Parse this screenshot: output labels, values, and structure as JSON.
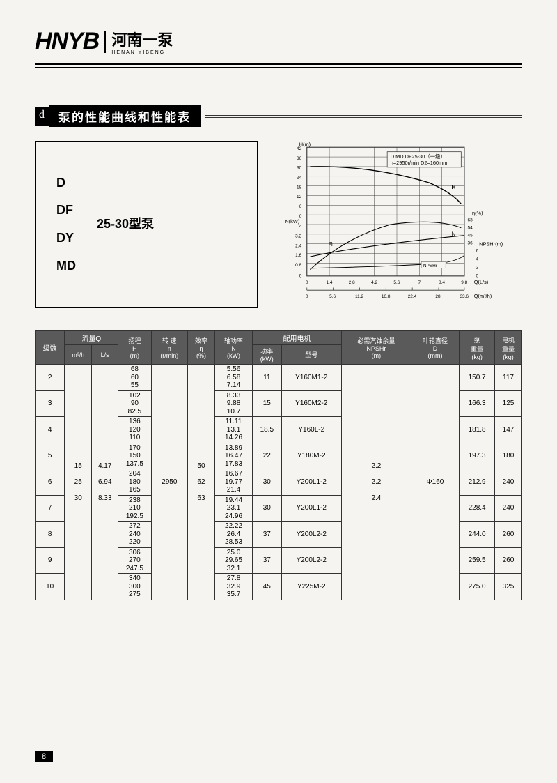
{
  "header": {
    "logo": "HNYB",
    "company_cn": "河南一泵",
    "company_en": "HENAN YIBENG"
  },
  "section_title": "泵的性能曲线和性能表",
  "pump_model": {
    "variants": [
      "D",
      "DF",
      "DY",
      "MD"
    ],
    "model_number": "25-30型泵"
  },
  "chart": {
    "title_line1": "D.MD.DF25-30（一级）",
    "title_line2": "n=2950r/min  D2=160mm",
    "y_label_H": "H(m)",
    "y_ticks_H": [
      "42",
      "36",
      "30",
      "24",
      "18",
      "12",
      "6",
      "0"
    ],
    "y_label_N": "N(kW)",
    "y_ticks_N": [
      "4",
      "3.2",
      "2.4",
      "1.6",
      "0.8",
      "0"
    ],
    "x_label_Ls": "Q(L/s)",
    "x_ticks_Ls": [
      "0",
      "1.4",
      "2.8",
      "4.2",
      "5.6",
      "7",
      "8.4",
      "9.8"
    ],
    "x_label_m3h": "Q(m³/h)",
    "x_ticks_m3h": [
      "0",
      "5.6",
      "11.2",
      "16.8",
      "22.4",
      "28",
      "33.6"
    ],
    "right_eta_label": "η(%)",
    "right_eta_ticks": [
      "63",
      "54",
      "45",
      "36"
    ],
    "right_npshr_label": "NPSHr(m)",
    "right_npshr_ticks": [
      "6",
      "4",
      "2",
      "0"
    ],
    "curve_labels": {
      "H": "H",
      "N": "N",
      "eta": "η",
      "NPSHr": "NPSHr"
    },
    "grid_color": "#333",
    "background": "#f5f4f0"
  },
  "table": {
    "headers": {
      "stage": "级数",
      "flow": "流量Q",
      "flow_m3h": "m³/h",
      "flow_ls": "L/s",
      "head": "扬程",
      "head_sub": "H",
      "head_unit": "(m)",
      "speed": "转 速",
      "speed_sub": "n",
      "speed_unit": "(r/min)",
      "eff": "效率",
      "eff_sub": "η",
      "eff_unit": "(%)",
      "shaft": "轴功率",
      "shaft_sub": "N",
      "shaft_unit": "(kW)",
      "motor": "配用电机",
      "motor_pow": "功率",
      "motor_pow_unit": "(kW)",
      "motor_model": "型号",
      "npshr": "必需汽蚀余量",
      "npshr_sub": "NPSHr",
      "npshr_unit": "(m)",
      "impeller": "叶轮直径",
      "impeller_sub": "D",
      "impeller_unit": "(mm)",
      "pump_wt": "泵",
      "pump_wt2": "重量",
      "pump_wt_unit": "(kg)",
      "motor_wt": "电机",
      "motor_wt2": "重量",
      "motor_wt_unit": "(kg)"
    },
    "flow_m3h_vals": [
      "15",
      "25",
      "30"
    ],
    "flow_ls_vals": [
      "4.17",
      "6.94",
      "8.33"
    ],
    "speed_val": "2950",
    "eff_vals": [
      "50",
      "62",
      "63"
    ],
    "npshr_vals": [
      "2.2",
      "2.2",
      "2.4"
    ],
    "impeller_val": "Φ160",
    "rows": [
      {
        "stage": "2",
        "H": [
          "68",
          "60",
          "55"
        ],
        "N": [
          "5.56",
          "6.58",
          "7.14"
        ],
        "mp": "11",
        "mm": "Y160M1-2",
        "pw": "150.7",
        "mw": "117"
      },
      {
        "stage": "3",
        "H": [
          "102",
          "90",
          "82.5"
        ],
        "N": [
          "8.33",
          "9.88",
          "10.7"
        ],
        "mp": "15",
        "mm": "Y160M2-2",
        "pw": "166.3",
        "mw": "125"
      },
      {
        "stage": "4",
        "H": [
          "136",
          "120",
          "110"
        ],
        "N": [
          "11.11",
          "13.1",
          "14.26"
        ],
        "mp": "18.5",
        "mm": "Y160L-2",
        "pw": "181.8",
        "mw": "147"
      },
      {
        "stage": "5",
        "H": [
          "170",
          "150",
          "137.5"
        ],
        "N": [
          "13.89",
          "16.47",
          "17.83"
        ],
        "mp": "22",
        "mm": "Y180M-2",
        "pw": "197.3",
        "mw": "180"
      },
      {
        "stage": "6",
        "H": [
          "204",
          "180",
          "165"
        ],
        "N": [
          "16.67",
          "19.77",
          "21.4"
        ],
        "mp": "30",
        "mm": "Y200L1-2",
        "pw": "212.9",
        "mw": "240"
      },
      {
        "stage": "7",
        "H": [
          "238",
          "210",
          "192.5"
        ],
        "N": [
          "19.44",
          "23.1",
          "24.96"
        ],
        "mp": "30",
        "mm": "Y200L1-2",
        "pw": "228.4",
        "mw": "240"
      },
      {
        "stage": "8",
        "H": [
          "272",
          "240",
          "220"
        ],
        "N": [
          "22.22",
          "26.4",
          "28.53"
        ],
        "mp": "37",
        "mm": "Y200L2-2",
        "pw": "244.0",
        "mw": "260"
      },
      {
        "stage": "9",
        "H": [
          "306",
          "270",
          "247.5"
        ],
        "N": [
          "25.0",
          "29.65",
          "32.1"
        ],
        "mp": "37",
        "mm": "Y200L2-2",
        "pw": "259.5",
        "mw": "260"
      },
      {
        "stage": "10",
        "H": [
          "340",
          "300",
          "275"
        ],
        "N": [
          "27.8",
          "32.9",
          "35.7"
        ],
        "mp": "45",
        "mm": "Y225M-2",
        "pw": "275.0",
        "mw": "325"
      }
    ]
  },
  "page_number": "8"
}
